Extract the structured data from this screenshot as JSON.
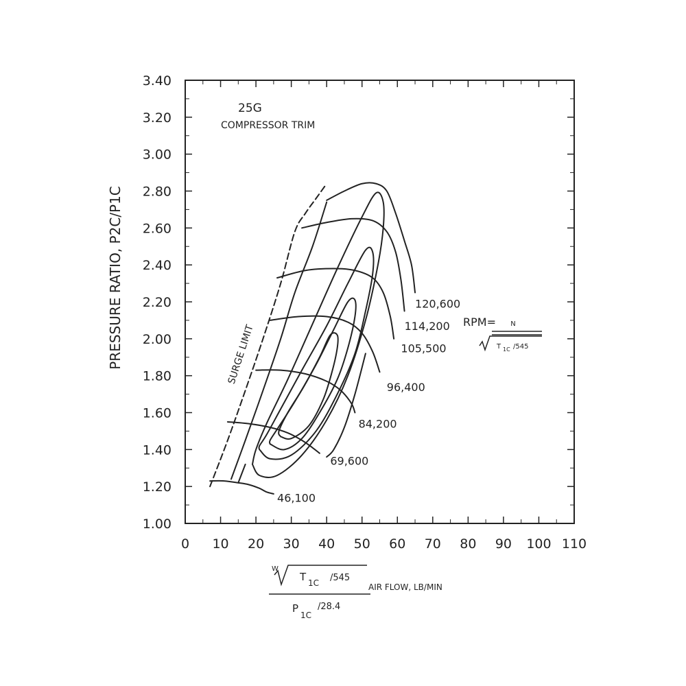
{
  "chart_data": {
    "type": "line",
    "title_line1": "25G",
    "title_line2": "COMPRESSOR TRIM",
    "ylabel": "PRESSURE RATIO, P2C/P1C",
    "xlabel": {
      "w": "W",
      "t1c": "T",
      "t1c_sub": "1C",
      "t1c_div": "/545",
      "air_flow": "AIR FLOW, LB/MIN",
      "p1c": "P",
      "p1c_sub": "1C",
      "p1c_div": "/28.4"
    },
    "rpm_formula": {
      "label": "RPM=",
      "n": "N",
      "t": "T",
      "t_sub": "1C",
      "t_div": "/545"
    },
    "surge_limit_label": "SURGE LIMIT",
    "xlim": [
      0,
      110
    ],
    "ylim": [
      1.0,
      3.4
    ],
    "x_ticks": [
      "0",
      "10",
      "20",
      "30",
      "40",
      "50",
      "60",
      "70",
      "80",
      "90",
      "100",
      "110"
    ],
    "y_ticks": [
      "1.00",
      "1.20",
      "1.40",
      "1.60",
      "1.80",
      "2.00",
      "2.20",
      "2.40",
      "2.60",
      "2.80",
      "3.00",
      "3.20",
      "3.40"
    ],
    "surge_line": {
      "x": [
        7,
        12,
        17,
        22,
        27,
        31,
        34,
        37,
        40
      ],
      "y": [
        1.2,
        1.45,
        1.72,
        2.0,
        2.3,
        2.58,
        2.68,
        2.76,
        2.84
      ]
    },
    "speed_lines": [
      {
        "name": "46,100",
        "label_x": 26,
        "label_y": 1.14,
        "x": [
          7,
          11,
          15,
          18,
          21,
          23,
          25
        ],
        "y": [
          1.23,
          1.23,
          1.22,
          1.21,
          1.19,
          1.17,
          1.16
        ]
      },
      {
        "name": "69,600",
        "label_x": 41,
        "label_y": 1.34,
        "x": [
          12,
          18,
          24,
          29,
          33,
          36,
          38
        ],
        "y": [
          1.55,
          1.54,
          1.52,
          1.49,
          1.45,
          1.41,
          1.38
        ]
      },
      {
        "name": "84,200",
        "label_x": 49,
        "label_y": 1.54,
        "x": [
          20,
          27,
          34,
          40,
          44,
          47,
          48
        ],
        "y": [
          1.83,
          1.83,
          1.81,
          1.77,
          1.72,
          1.65,
          1.6
        ]
      },
      {
        "name": "96,400",
        "label_x": 57,
        "label_y": 1.74,
        "x": [
          24,
          32,
          40,
          46,
          50,
          53,
          55
        ],
        "y": [
          2.1,
          2.12,
          2.12,
          2.09,
          2.03,
          1.93,
          1.82
        ]
      },
      {
        "name": "105,500",
        "label_x": 61,
        "label_y": 1.95,
        "x": [
          26,
          34,
          42,
          48,
          53,
          56,
          58,
          59
        ],
        "y": [
          2.33,
          2.37,
          2.38,
          2.37,
          2.33,
          2.25,
          2.12,
          2.0
        ]
      },
      {
        "name": "114,200",
        "label_x": 62,
        "label_y": 2.07,
        "x": [
          33,
          40,
          47,
          53,
          57,
          59.5,
          61,
          62
        ],
        "y": [
          2.6,
          2.63,
          2.65,
          2.64,
          2.58,
          2.47,
          2.32,
          2.15
        ]
      },
      {
        "name": "120,600",
        "label_x": 65,
        "label_y": 2.19,
        "x": [
          40,
          45,
          50,
          54,
          57,
          59.5,
          62,
          64,
          65
        ],
        "y": [
          2.75,
          2.8,
          2.84,
          2.84,
          2.8,
          2.68,
          2.53,
          2.4,
          2.25
        ]
      }
    ],
    "efficiency_islands": [
      {
        "x": [
          27,
          30,
          35,
          39,
          41.5,
          43,
          43,
          41,
          38,
          33.5,
          29,
          26.5,
          27
        ],
        "y": [
          1.47,
          1.46,
          1.53,
          1.67,
          1.82,
          1.95,
          2.02,
          2.02,
          1.9,
          1.74,
          1.6,
          1.5,
          1.47
        ]
      },
      {
        "x": [
          24,
          28,
          33,
          38,
          43,
          46,
          48,
          48,
          46,
          42,
          37,
          31,
          26,
          24,
          24
        ],
        "y": [
          1.43,
          1.4,
          1.46,
          1.6,
          1.78,
          1.95,
          2.12,
          2.21,
          2.2,
          2.05,
          1.86,
          1.66,
          1.51,
          1.45,
          1.43
        ]
      },
      {
        "x": [
          21,
          24,
          30,
          37,
          43,
          48,
          51,
          53,
          53,
          51,
          46,
          40,
          33,
          27,
          23,
          21,
          21
        ],
        "y": [
          1.4,
          1.35,
          1.37,
          1.5,
          1.7,
          1.92,
          2.15,
          2.35,
          2.47,
          2.48,
          2.3,
          2.07,
          1.83,
          1.62,
          1.48,
          1.42,
          1.4
        ]
      },
      {
        "x": [
          19,
          21,
          26,
          33,
          40,
          46,
          51,
          54.5,
          56,
          56,
          54,
          50,
          43,
          36,
          29,
          23,
          20,
          19
        ],
        "y": [
          1.32,
          1.26,
          1.26,
          1.37,
          1.56,
          1.8,
          2.1,
          2.4,
          2.6,
          2.74,
          2.79,
          2.66,
          2.38,
          2.08,
          1.78,
          1.54,
          1.4,
          1.32
        ]
      }
    ],
    "constant_flow_lines": [
      {
        "x": [
          13,
          17,
          22,
          27,
          31,
          36,
          40
        ],
        "y": [
          1.24,
          1.45,
          1.72,
          2.0,
          2.25,
          2.5,
          2.74
        ]
      },
      {
        "x": [
          15,
          17
        ],
        "y": [
          1.22,
          1.32
        ]
      },
      {
        "x": [
          40,
          42,
          45,
          48,
          51
        ],
        "y": [
          1.36,
          1.4,
          1.52,
          1.7,
          1.92
        ]
      }
    ],
    "grid": false,
    "legend": "none"
  }
}
